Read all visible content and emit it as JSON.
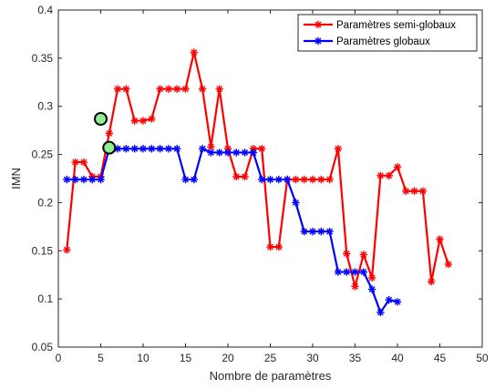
{
  "chart_data": {
    "type": "line",
    "xlabel": "Nombre de paramètres",
    "ylabel": "IMN",
    "xlim": [
      0,
      50
    ],
    "ylim": [
      0.05,
      0.4
    ],
    "xticks": [
      0,
      5,
      10,
      15,
      20,
      25,
      30,
      35,
      40,
      45,
      50
    ],
    "yticks": [
      0.05,
      0.1,
      0.15,
      0.2,
      0.25,
      0.3,
      0.35,
      0.4
    ],
    "grid": false,
    "legend_position": "top-right",
    "series": [
      {
        "name": "Paramètres semi-globaux",
        "color": "#ff0000",
        "marker": "asterisk",
        "x": [
          1,
          2,
          3,
          4,
          5,
          6,
          7,
          8,
          9,
          10,
          11,
          12,
          13,
          14,
          15,
          16,
          17,
          18,
          19,
          20,
          21,
          22,
          23,
          24,
          25,
          26,
          27,
          28,
          29,
          30,
          31,
          32,
          33,
          34,
          35,
          36,
          37,
          38,
          39,
          40,
          41,
          42,
          43,
          44,
          45,
          46
        ],
        "y": [
          0.151,
          0.242,
          0.242,
          0.227,
          0.227,
          0.272,
          0.318,
          0.318,
          0.285,
          0.285,
          0.287,
          0.318,
          0.318,
          0.318,
          0.318,
          0.356,
          0.318,
          0.258,
          0.318,
          0.256,
          0.227,
          0.227,
          0.256,
          0.256,
          0.154,
          0.154,
          0.224,
          0.224,
          0.224,
          0.224,
          0.224,
          0.224,
          0.256,
          0.147,
          0.113,
          0.146,
          0.122,
          0.228,
          0.228,
          0.237,
          0.212,
          0.212,
          0.212,
          0.118,
          0.162,
          0.136
        ]
      },
      {
        "name": "Paramètres globaux",
        "color": "#0000ff",
        "marker": "asterisk",
        "x": [
          1,
          2,
          3,
          4,
          5,
          6,
          7,
          8,
          9,
          10,
          11,
          12,
          13,
          14,
          15,
          16,
          17,
          18,
          19,
          20,
          21,
          22,
          23,
          24,
          25,
          26,
          27,
          28,
          29,
          30,
          31,
          32,
          33,
          34,
          35,
          36,
          37,
          38,
          39,
          40
        ],
        "y": [
          0.224,
          0.224,
          0.224,
          0.224,
          0.224,
          0.256,
          0.256,
          0.256,
          0.256,
          0.256,
          0.256,
          0.256,
          0.256,
          0.256,
          0.224,
          0.224,
          0.256,
          0.252,
          0.252,
          0.252,
          0.252,
          0.252,
          0.252,
          0.224,
          0.224,
          0.224,
          0.224,
          0.2,
          0.17,
          0.17,
          0.17,
          0.17,
          0.128,
          0.128,
          0.128,
          0.128,
          0.11,
          0.086,
          0.099,
          0.097
        ]
      }
    ],
    "highlights": [
      {
        "x": 5,
        "y": 0.287,
        "fill": "#90ee90",
        "stroke": "#000000"
      },
      {
        "x": 6,
        "y": 0.257,
        "fill": "#90ee90",
        "stroke": "#000000"
      }
    ]
  }
}
